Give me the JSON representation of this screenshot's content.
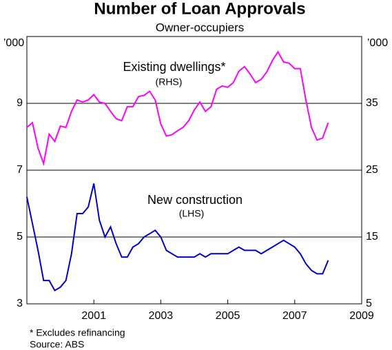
{
  "chart_data": {
    "type": "line",
    "title": "Number of Loan Approvals",
    "subtitle": "Owner-occupiers",
    "y_unit": "’000",
    "y2_unit": "’000",
    "x": [
      1999.0,
      1999.1667,
      1999.3333,
      1999.5,
      1999.6667,
      1999.8333,
      2000.0,
      2000.1667,
      2000.3333,
      2000.5,
      2000.6667,
      2000.8333,
      2001.0,
      2001.1667,
      2001.3333,
      2001.5,
      2001.6667,
      2001.8333,
      2002.0,
      2002.1667,
      2002.3333,
      2002.5,
      2002.6667,
      2002.8333,
      2003.0,
      2003.1667,
      2003.3333,
      2003.5,
      2003.6667,
      2003.8333,
      2004.0,
      2004.1667,
      2004.3333,
      2004.5,
      2004.6667,
      2004.8333,
      2005.0,
      2005.1667,
      2005.3333,
      2005.5,
      2005.6667,
      2005.8333,
      2006.0,
      2006.1667,
      2006.3333,
      2006.5,
      2006.6667,
      2006.8333,
      2007.0,
      2007.1667,
      2007.3333,
      2007.5,
      2007.6667,
      2007.8333,
      2008.0
    ],
    "xlim": [
      1999,
      2009
    ],
    "xticks": [
      2001,
      2003,
      2005,
      2007,
      2009
    ],
    "panels": [
      {
        "ylim": [
          7,
          11
        ],
        "yticks": [
          9
        ],
        "y2lim": [
          25,
          45
        ],
        "y2ticks": [
          35
        ],
        "series": [
          {
            "name": "Existing dwellings*",
            "side": "(RHS)",
            "axis": "y2",
            "color": "#ff00ff",
            "values": [
              31.4,
              32.1,
              28.3,
              26.0,
              30.4,
              29.3,
              31.6,
              31.4,
              33.8,
              35.5,
              35.2,
              35.5,
              36.3,
              35.2,
              35.0,
              33.8,
              32.7,
              32.4,
              34.5,
              34.5,
              36.0,
              36.2,
              36.8,
              35.5,
              31.9,
              30.1,
              30.3,
              30.9,
              31.4,
              32.4,
              34.0,
              35.2,
              33.8,
              34.5,
              37.1,
              37.6,
              37.4,
              38.1,
              39.8,
              40.5,
              39.4,
              38.1,
              38.6,
              39.7,
              41.4,
              42.7,
              41.2,
              41.0,
              40.2,
              40.2,
              35.5,
              31.4,
              29.5,
              29.8,
              32.1
            ]
          }
        ]
      },
      {
        "ylim": [
          3,
          7
        ],
        "yticks": [
          3,
          5,
          7
        ],
        "y2lim": [
          5,
          25
        ],
        "y2ticks": [
          5,
          15,
          25
        ],
        "series": [
          {
            "name": "New construction",
            "side": "(LHS)",
            "axis": "y",
            "color": "#0000cc",
            "values": [
              6.2,
              5.4,
              4.6,
              3.7,
              3.7,
              3.4,
              3.5,
              3.7,
              4.5,
              5.7,
              5.7,
              5.9,
              6.6,
              5.5,
              5.0,
              5.3,
              4.8,
              4.4,
              4.4,
              4.7,
              4.8,
              5.0,
              5.1,
              5.2,
              5.0,
              4.6,
              4.5,
              4.4,
              4.4,
              4.4,
              4.4,
              4.5,
              4.4,
              4.5,
              4.5,
              4.5,
              4.5,
              4.6,
              4.7,
              4.6,
              4.6,
              4.6,
              4.5,
              4.6,
              4.7,
              4.8,
              4.9,
              4.8,
              4.7,
              4.5,
              4.2,
              4.0,
              3.9,
              3.9,
              4.3
            ]
          }
        ]
      }
    ],
    "notes": [
      "*   Excludes refinancing",
      "Source: ABS"
    ]
  }
}
